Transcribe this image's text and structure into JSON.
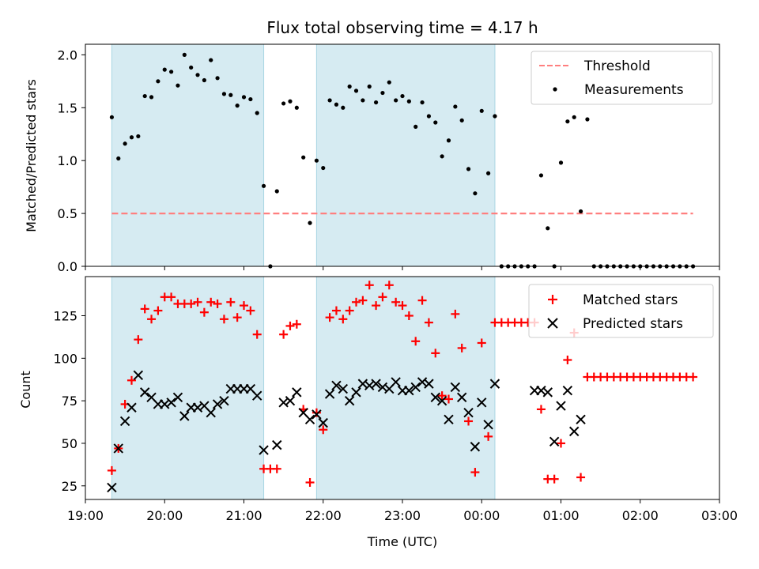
{
  "chart_data": [
    {
      "type": "scatter",
      "title": "Flux total observing time = 4.17 h",
      "xlabel": "",
      "ylabel": "Matched/Predicted stars",
      "xlim": [
        "19:00",
        "03:00"
      ],
      "ylim": [
        0,
        2.1
      ],
      "yticks": [
        0.0,
        0.5,
        1.0,
        1.5,
        2.0
      ],
      "ytick_labels": [
        "0.0",
        "0.5",
        "1.0",
        "1.5",
        "2.0"
      ],
      "legend_position": "top-right",
      "shaded_intervals": [
        [
          "19:20",
          "21:15"
        ],
        [
          "21:55",
          "00:10"
        ]
      ],
      "threshold": {
        "name": "Threshold",
        "value": 0.5,
        "x_start": "19:20",
        "x_end": "02:40",
        "color": "#ff7f7f"
      },
      "series": [
        {
          "name": "Measurements",
          "color": "#000000",
          "marker": "dot",
          "points": [
            [
              "19:20",
              1.41
            ],
            [
              "19:25",
              1.02
            ],
            [
              "19:30",
              1.16
            ],
            [
              "19:35",
              1.22
            ],
            [
              "19:40",
              1.23
            ],
            [
              "19:45",
              1.61
            ],
            [
              "19:50",
              1.6
            ],
            [
              "19:55",
              1.75
            ],
            [
              "20:00",
              1.86
            ],
            [
              "20:05",
              1.84
            ],
            [
              "20:10",
              1.71
            ],
            [
              "20:15",
              2.0
            ],
            [
              "20:20",
              1.88
            ],
            [
              "20:25",
              1.81
            ],
            [
              "20:30",
              1.76
            ],
            [
              "20:35",
              1.95
            ],
            [
              "20:40",
              1.78
            ],
            [
              "20:45",
              1.63
            ],
            [
              "20:50",
              1.62
            ],
            [
              "20:55",
              1.52
            ],
            [
              "21:00",
              1.6
            ],
            [
              "21:05",
              1.58
            ],
            [
              "21:10",
              1.45
            ],
            [
              "21:15",
              0.76
            ],
            [
              "21:20",
              0.0
            ],
            [
              "21:25",
              0.71
            ],
            [
              "21:30",
              1.54
            ],
            [
              "21:35",
              1.56
            ],
            [
              "21:40",
              1.5
            ],
            [
              "21:45",
              1.03
            ],
            [
              "21:50",
              0.41
            ],
            [
              "21:55",
              1.0
            ],
            [
              "22:00",
              0.93
            ],
            [
              "22:05",
              1.57
            ],
            [
              "22:10",
              1.53
            ],
            [
              "22:15",
              1.5
            ],
            [
              "22:20",
              1.7
            ],
            [
              "22:25",
              1.66
            ],
            [
              "22:30",
              1.57
            ],
            [
              "22:35",
              1.7
            ],
            [
              "22:40",
              1.55
            ],
            [
              "22:45",
              1.64
            ],
            [
              "22:50",
              1.74
            ],
            [
              "22:55",
              1.57
            ],
            [
              "23:00",
              1.61
            ],
            [
              "23:05",
              1.56
            ],
            [
              "23:10",
              1.32
            ],
            [
              "23:15",
              1.55
            ],
            [
              "23:20",
              1.42
            ],
            [
              "23:25",
              1.36
            ],
            [
              "23:30",
              1.04
            ],
            [
              "23:35",
              1.19
            ],
            [
              "23:40",
              1.51
            ],
            [
              "23:45",
              1.38
            ],
            [
              "23:50",
              0.92
            ],
            [
              "23:55",
              0.69
            ],
            [
              "00:00",
              1.47
            ],
            [
              "00:05",
              0.88
            ],
            [
              "00:10",
              1.42
            ],
            [
              "00:15",
              0.0
            ],
            [
              "00:20",
              0.0
            ],
            [
              "00:25",
              0.0
            ],
            [
              "00:30",
              0.0
            ],
            [
              "00:35",
              0.0
            ],
            [
              "00:40",
              0.0
            ],
            [
              "00:45",
              0.86
            ],
            [
              "00:50",
              0.36
            ],
            [
              "00:55",
              0.0
            ],
            [
              "01:00",
              0.98
            ],
            [
              "01:05",
              1.37
            ],
            [
              "01:10",
              1.41
            ],
            [
              "01:15",
              0.52
            ],
            [
              "01:20",
              1.39
            ],
            [
              "01:25",
              0.0
            ],
            [
              "01:30",
              0.0
            ],
            [
              "01:35",
              0.0
            ],
            [
              "01:40",
              0.0
            ],
            [
              "01:45",
              0.0
            ],
            [
              "01:50",
              0.0
            ],
            [
              "01:55",
              0.0
            ],
            [
              "02:00",
              0.0
            ],
            [
              "02:05",
              0.0
            ],
            [
              "02:10",
              0.0
            ],
            [
              "02:15",
              0.0
            ],
            [
              "02:20",
              0.0
            ],
            [
              "02:25",
              0.0
            ],
            [
              "02:30",
              0.0
            ],
            [
              "02:35",
              0.0
            ],
            [
              "02:40",
              0.0
            ]
          ]
        }
      ]
    },
    {
      "type": "scatter",
      "title": "",
      "xlabel": "Time (UTC)",
      "ylabel": "Count",
      "xlim": [
        "19:00",
        "03:00"
      ],
      "xticks": [
        "19:00",
        "20:00",
        "21:00",
        "22:00",
        "23:00",
        "00:00",
        "01:00",
        "02:00",
        "03:00"
      ],
      "ylim": [
        17,
        148
      ],
      "yticks": [
        25,
        50,
        75,
        100,
        125
      ],
      "ytick_labels": [
        "25",
        "50",
        "75",
        "100",
        "125"
      ],
      "legend_position": "top-right",
      "shaded_intervals": [
        [
          "19:20",
          "21:15"
        ],
        [
          "21:55",
          "00:10"
        ]
      ],
      "series": [
        {
          "name": "Matched stars",
          "color": "#ff0000",
          "marker": "plus",
          "points": [
            [
              "19:20",
              34
            ],
            [
              "19:25",
              47
            ],
            [
              "19:30",
              73
            ],
            [
              "19:35",
              87
            ],
            [
              "19:40",
              111
            ],
            [
              "19:45",
              129
            ],
            [
              "19:50",
              123
            ],
            [
              "19:55",
              128
            ],
            [
              "20:00",
              136
            ],
            [
              "20:05",
              136
            ],
            [
              "20:10",
              132
            ],
            [
              "20:15",
              132
            ],
            [
              "20:20",
              132
            ],
            [
              "20:25",
              133
            ],
            [
              "20:30",
              127
            ],
            [
              "20:35",
              133
            ],
            [
              "20:40",
              132
            ],
            [
              "20:45",
              123
            ],
            [
              "20:50",
              133
            ],
            [
              "20:55",
              124
            ],
            [
              "21:00",
              131
            ],
            [
              "21:05",
              128
            ],
            [
              "21:10",
              114
            ],
            [
              "21:15",
              35
            ],
            [
              "21:20",
              35
            ],
            [
              "21:25",
              35
            ],
            [
              "21:30",
              114
            ],
            [
              "21:35",
              119
            ],
            [
              "21:40",
              120
            ],
            [
              "21:45",
              70
            ],
            [
              "21:50",
              27
            ],
            [
              "21:55",
              68
            ],
            [
              "22:00",
              58
            ],
            [
              "22:05",
              124
            ],
            [
              "22:10",
              128
            ],
            [
              "22:15",
              123
            ],
            [
              "22:20",
              128
            ],
            [
              "22:25",
              133
            ],
            [
              "22:30",
              134
            ],
            [
              "22:35",
              143
            ],
            [
              "22:40",
              131
            ],
            [
              "22:45",
              136
            ],
            [
              "22:50",
              143
            ],
            [
              "22:55",
              133
            ],
            [
              "23:00",
              131
            ],
            [
              "23:05",
              125
            ],
            [
              "23:10",
              110
            ],
            [
              "23:15",
              134
            ],
            [
              "23:20",
              121
            ],
            [
              "23:25",
              103
            ],
            [
              "23:30",
              78
            ],
            [
              "23:35",
              76
            ],
            [
              "23:40",
              126
            ],
            [
              "23:45",
              106
            ],
            [
              "23:50",
              63
            ],
            [
              "23:55",
              33
            ],
            [
              "00:00",
              109
            ],
            [
              "00:05",
              54
            ],
            [
              "00:10",
              121
            ],
            [
              "00:15",
              121
            ],
            [
              "00:20",
              121
            ],
            [
              "00:25",
              121
            ],
            [
              "00:30",
              121
            ],
            [
              "00:35",
              121
            ],
            [
              "00:40",
              121
            ],
            [
              "00:45",
              70
            ],
            [
              "00:50",
              29
            ],
            [
              "00:55",
              29
            ],
            [
              "01:00",
              50
            ],
            [
              "01:05",
              99
            ],
            [
              "01:10",
              115
            ],
            [
              "01:15",
              30
            ],
            [
              "01:20",
              89
            ],
            [
              "01:25",
              89
            ],
            [
              "01:30",
              89
            ],
            [
              "01:35",
              89
            ],
            [
              "01:40",
              89
            ],
            [
              "01:45",
              89
            ],
            [
              "01:50",
              89
            ],
            [
              "01:55",
              89
            ],
            [
              "02:00",
              89
            ],
            [
              "02:05",
              89
            ],
            [
              "02:10",
              89
            ],
            [
              "02:15",
              89
            ],
            [
              "02:20",
              89
            ],
            [
              "02:25",
              89
            ],
            [
              "02:30",
              89
            ],
            [
              "02:35",
              89
            ],
            [
              "02:40",
              89
            ]
          ]
        },
        {
          "name": "Predicted stars",
          "color": "#000000",
          "marker": "x",
          "points": [
            [
              "19:20",
              24
            ],
            [
              "19:25",
              47
            ],
            [
              "19:30",
              63
            ],
            [
              "19:35",
              71
            ],
            [
              "19:40",
              90
            ],
            [
              "19:45",
              80
            ],
            [
              "19:50",
              77
            ],
            [
              "19:55",
              73
            ],
            [
              "20:00",
              73
            ],
            [
              "20:05",
              74
            ],
            [
              "20:10",
              77
            ],
            [
              "20:15",
              66
            ],
            [
              "20:20",
              71
            ],
            [
              "20:25",
              71
            ],
            [
              "20:30",
              72
            ],
            [
              "20:35",
              68
            ],
            [
              "20:40",
              73
            ],
            [
              "20:45",
              75
            ],
            [
              "20:50",
              82
            ],
            [
              "20:55",
              82
            ],
            [
              "21:00",
              82
            ],
            [
              "21:05",
              82
            ],
            [
              "21:10",
              78
            ],
            [
              "21:15",
              46
            ],
            [
              "21:25",
              49
            ],
            [
              "21:30",
              74
            ],
            [
              "21:35",
              75
            ],
            [
              "21:40",
              80
            ],
            [
              "21:45",
              68
            ],
            [
              "21:50",
              64
            ],
            [
              "21:55",
              67
            ],
            [
              "22:00",
              62
            ],
            [
              "22:05",
              79
            ],
            [
              "22:10",
              84
            ],
            [
              "22:15",
              82
            ],
            [
              "22:20",
              75
            ],
            [
              "22:25",
              80
            ],
            [
              "22:30",
              85
            ],
            [
              "22:35",
              84
            ],
            [
              "22:40",
              85
            ],
            [
              "22:45",
              83
            ],
            [
              "22:50",
              82
            ],
            [
              "22:55",
              86
            ],
            [
              "23:00",
              81
            ],
            [
              "23:05",
              81
            ],
            [
              "23:10",
              83
            ],
            [
              "23:15",
              86
            ],
            [
              "23:20",
              85
            ],
            [
              "23:25",
              77
            ],
            [
              "23:30",
              75
            ],
            [
              "23:35",
              64
            ],
            [
              "23:40",
              83
            ],
            [
              "23:45",
              77
            ],
            [
              "23:50",
              68
            ],
            [
              "23:55",
              48
            ],
            [
              "00:00",
              74
            ],
            [
              "00:05",
              61
            ],
            [
              "00:10",
              85
            ],
            [
              "00:40",
              81
            ],
            [
              "00:45",
              81
            ],
            [
              "00:50",
              80
            ],
            [
              "00:55",
              51
            ],
            [
              "01:00",
              72
            ],
            [
              "01:05",
              81
            ],
            [
              "01:10",
              57
            ],
            [
              "01:15",
              64
            ]
          ]
        }
      ]
    }
  ]
}
